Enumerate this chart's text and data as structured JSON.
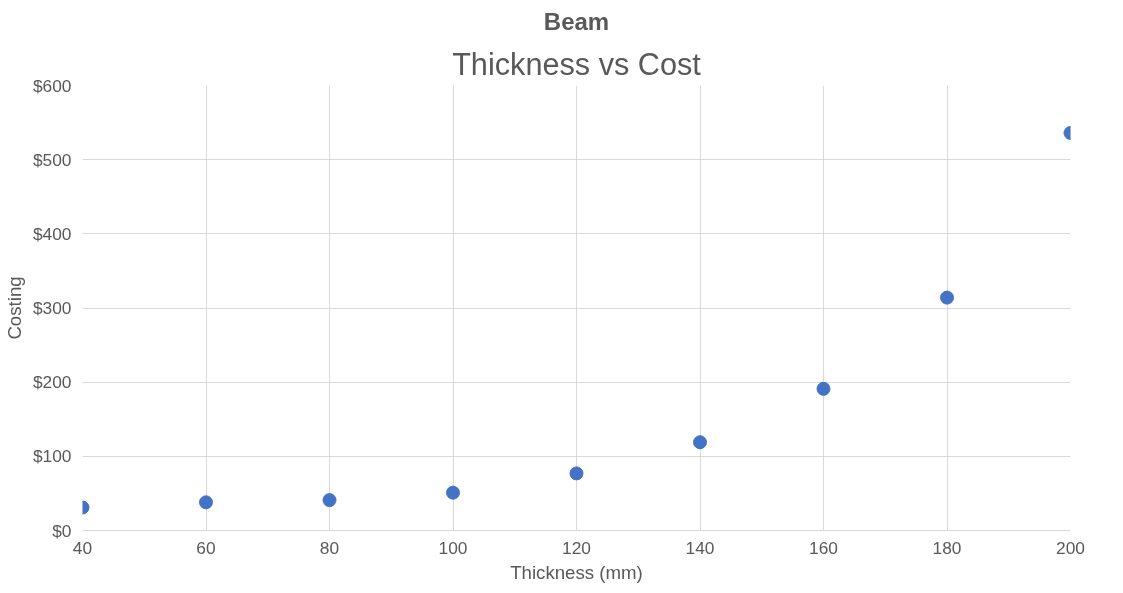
{
  "chart_data": {
    "type": "scatter",
    "title": "Beam",
    "subtitle": "Thickness vs Cost",
    "xlabel": "Thickness (mm)",
    "ylabel": "Costing",
    "x": [
      40,
      60,
      80,
      100,
      120,
      140,
      160,
      180,
      200
    ],
    "series": [
      {
        "color": "#4472c4",
        "values": [
          31,
          38,
          41,
          51,
          77,
          119,
          191,
          314,
          536
        ]
      }
    ],
    "xlim": [
      40,
      200
    ],
    "xticks": [
      40,
      60,
      80,
      100,
      120,
      140,
      160,
      180,
      200
    ],
    "ylim": [
      0,
      600
    ],
    "yticks": [
      {
        "value": 0,
        "label": "$0"
      },
      {
        "value": 100,
        "label": "$100"
      },
      {
        "value": 200,
        "label": "$200"
      },
      {
        "value": 300,
        "label": "$300"
      },
      {
        "value": 400,
        "label": "$400"
      },
      {
        "value": 500,
        "label": "$500"
      },
      {
        "value": 600,
        "label": "$600"
      }
    ],
    "grid": true,
    "marker": "circle"
  }
}
